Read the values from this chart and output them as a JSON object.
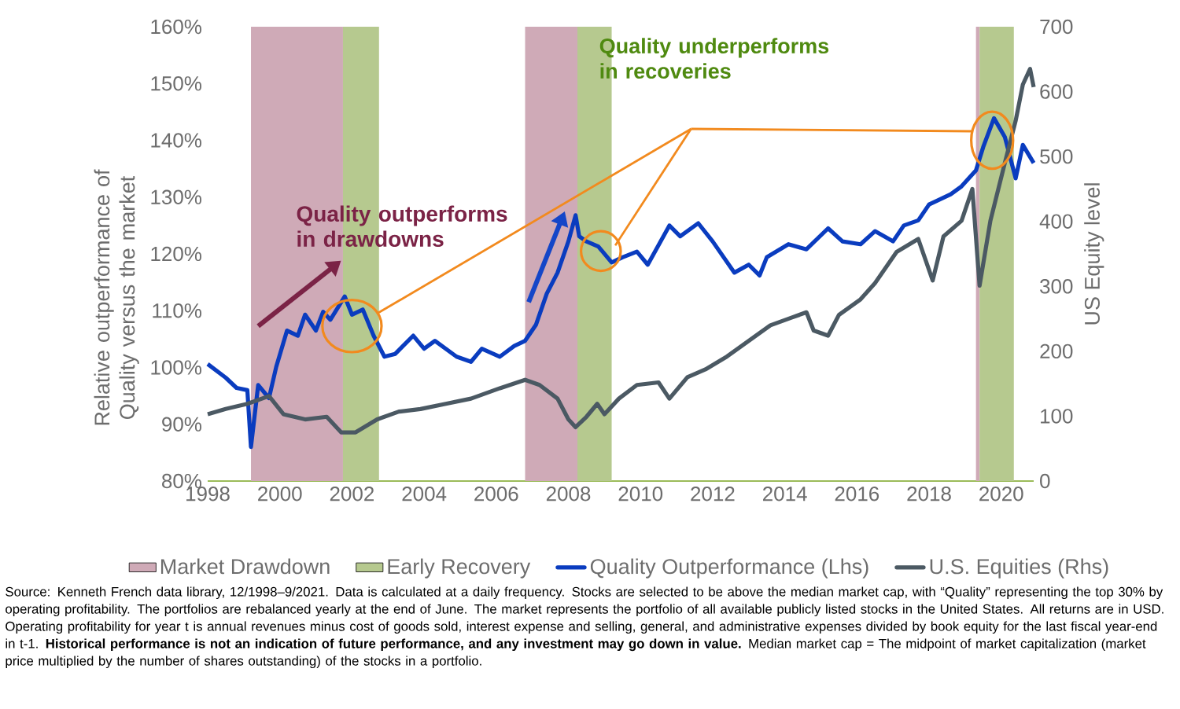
{
  "chart_data": {
    "type": "line",
    "ylabel": "Relative outperformance of Quality versus the market",
    "y2label": "US Equity level",
    "xlim": [
      1998,
      2020.9
    ],
    "xticks": [
      1998,
      2000,
      2002,
      2004,
      2006,
      2008,
      2010,
      2012,
      2014,
      2016,
      2018,
      2020
    ],
    "ylim": [
      80,
      160
    ],
    "yticks": [
      {
        "value": 80,
        "label": "80%"
      },
      {
        "value": 90,
        "label": "90%"
      },
      {
        "value": 100,
        "label": "100%"
      },
      {
        "value": 110,
        "label": "110%"
      },
      {
        "value": 120,
        "label": "120%"
      },
      {
        "value": 130,
        "label": "130%"
      },
      {
        "value": 140,
        "label": "140%"
      },
      {
        "value": 150,
        "label": "150%"
      },
      {
        "value": 160,
        "label": "160%"
      }
    ],
    "y2lim": [
      0,
      700
    ],
    "y2ticks": [
      0,
      100,
      200,
      300,
      400,
      500,
      600,
      700
    ],
    "bands": [
      {
        "axis": "x",
        "from": 1999.2,
        "to": 2001.75,
        "label": "Market Drawdown",
        "color": "#cfaab7"
      },
      {
        "axis": "x",
        "from": 2001.75,
        "to": 2002.75,
        "label": "Early Recovery",
        "color": "#b6c98f"
      },
      {
        "axis": "x",
        "from": 2006.8,
        "to": 2008.25,
        "color": "#cfaab7"
      },
      {
        "axis": "x",
        "from": 2008.25,
        "to": 2009.2,
        "color": "#b6c98f"
      },
      {
        "axis": "x",
        "from": 2019.3,
        "to": 2019.4,
        "color": "#cfaab7"
      },
      {
        "axis": "x",
        "from": 2019.4,
        "to": 2020.35,
        "color": "#b6c98f"
      }
    ],
    "series": [
      {
        "name": "Quality Outperformance (Lhs)",
        "color": "#0a3cbf",
        "x": [
          1998.0,
          1998.5,
          1998.8,
          1999.1,
          1999.2,
          1999.4,
          1999.7,
          1999.9,
          2000.2,
          2000.5,
          2000.7,
          2001.0,
          2001.2,
          2001.4,
          2001.8,
          2002.0,
          2002.3,
          2002.6,
          2002.9,
          2003.2,
          2003.7,
          2004.0,
          2004.3,
          2004.9,
          2005.3,
          2005.6,
          2006.1,
          2006.5,
          2006.8,
          2007.1,
          2007.4,
          2007.7,
          2008.0,
          2008.2,
          2008.3,
          2008.5,
          2008.83,
          2009.2,
          2009.5,
          2009.9,
          2010.2,
          2010.8,
          2011.1,
          2011.6,
          2012.0,
          2012.6,
          2013.0,
          2013.3,
          2013.5,
          2014.1,
          2014.6,
          2015.2,
          2015.6,
          2016.1,
          2016.5,
          2017.0,
          2017.3,
          2017.7,
          2018.0,
          2018.6,
          2018.9,
          2019.3,
          2019.5,
          2019.8,
          2020.1,
          2020.4,
          2020.6,
          2020.9
        ],
        "values": [
          100.6,
          98.2,
          96.4,
          96,
          86,
          96.9,
          94.6,
          100.1,
          106.5,
          105.6,
          109.3,
          106.5,
          109.8,
          108.4,
          112.5,
          109.3,
          110.2,
          105.6,
          101.9,
          102.4,
          105.6,
          103.3,
          104.7,
          101.9,
          101.0,
          103.3,
          101.9,
          103.8,
          104.7,
          107.5,
          113,
          116.7,
          122.2,
          126.8,
          123.1,
          122.2,
          121.3,
          118.5,
          119.4,
          120.4,
          118.1,
          125.0,
          123.1,
          125.4,
          122.2,
          116.7,
          118.1,
          116.2,
          119.4,
          121.7,
          120.8,
          124.5,
          122.2,
          121.7,
          124.0,
          122.2,
          125.0,
          125.9,
          128.7,
          130.5,
          131.9,
          134.7,
          138.8,
          143.9,
          140.6,
          133.3,
          139.2,
          136.0
        ]
      },
      {
        "name": "U.S. Equities (Rhs)",
        "color": "#4b5963",
        "axis": "y2",
        "x": [
          1998.0,
          1998.5,
          1999.1,
          1999.7,
          2000.1,
          2000.7,
          2001.3,
          2001.7,
          2002.1,
          2002.7,
          2003.3,
          2003.9,
          2004.6,
          2005.3,
          2006.1,
          2006.8,
          2007.2,
          2007.7,
          2008.0,
          2008.2,
          2008.5,
          2008.8,
          2009.0,
          2009.4,
          2009.9,
          2010.5,
          2010.8,
          2011.3,
          2011.8,
          2012.4,
          2013.0,
          2013.6,
          2014.2,
          2014.6,
          2014.8,
          2015.2,
          2015.5,
          2016.1,
          2016.5,
          2017.1,
          2017.7,
          2018.1,
          2018.4,
          2018.9,
          2019.2,
          2019.4,
          2019.7,
          2020.1,
          2020.4,
          2020.6,
          2020.8,
          2020.9
        ],
        "values": [
          103,
          111,
          119,
          131,
          103,
          95,
          99,
          75,
          75,
          95,
          107,
          111,
          119,
          127,
          143,
          156,
          148,
          127,
          95,
          83,
          99,
          119,
          103,
          127,
          148,
          152,
          127,
          160,
          172,
          192,
          216,
          240,
          252,
          260,
          232,
          224,
          256,
          280,
          305,
          353,
          373,
          309,
          377,
          401,
          450,
          301,
          401,
          490,
          555,
          611,
          635,
          607
        ]
      }
    ],
    "marker": "none",
    "line_style": "solid",
    "grid": false,
    "legend": "bottom",
    "annotations": [
      "Quality outperforms in drawdowns",
      "Quality underperforms in recoveries",
      "Source: Kenneth French data library, 12/1998–9/2021. Data is calculated at a daily frequency. Stocks are selected to be above the median market cap, with “Quality” representing the top 30% by operating profitability. The portfolios are rebalanced yearly at the end of June. The market represents the portfolio of all available publicly listed stocks in the United States. All returns are in USD. Operating profitability for year t is annual revenues minus cost of goods sold, interest expense and selling, general, and administrative expenses divided by book equity for the last fiscal year-end in t-1. **Historical performance is not an indication of future performance, and any investment may go down in value.** Median market cap = The midpoint of market capitalization (market price multiplied by the number of shares outstanding) of the stocks in a portfolio."
    ]
  }
}
